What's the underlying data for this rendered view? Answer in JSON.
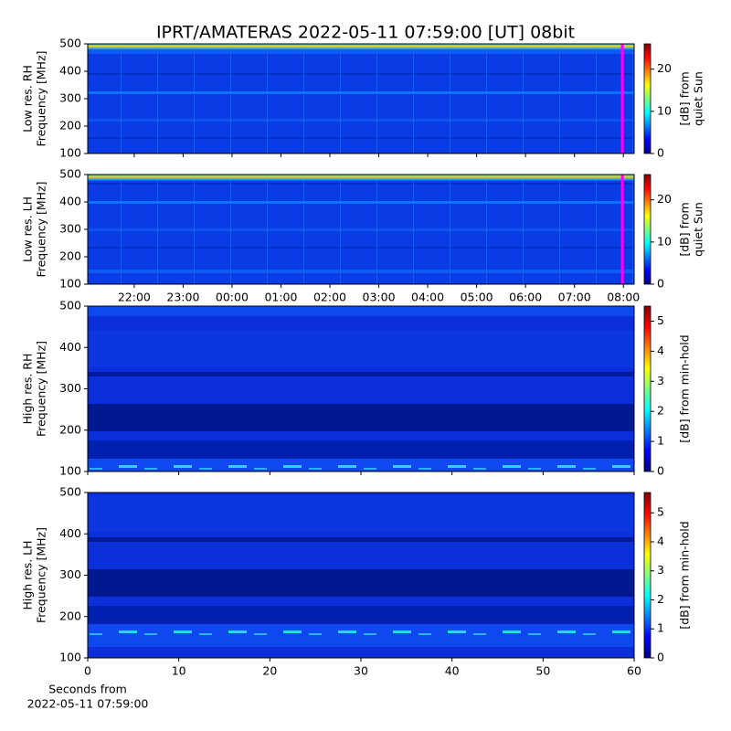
{
  "chart_data": [
    {
      "type": "spectrogram",
      "title": "IPRT/AMATERAS 2022-05-11 07:59:00 [UT]   08bit",
      "ylabel": [
        "Low res. RH",
        "Frequency [MHz]"
      ],
      "ylim": [
        100,
        500
      ],
      "yticks": [
        100,
        200,
        300,
        400,
        500
      ],
      "xlim": [
        21.05,
        32.22
      ],
      "marker_x": 31.98,
      "marker_color": "#ff00ff",
      "colorbar_label": [
        "[dB] from",
        "quiet Sun"
      ],
      "clim": [
        0,
        26
      ],
      "cticks": [
        0,
        10,
        20
      ],
      "colormap": "jet"
    },
    {
      "type": "spectrogram",
      "ylabel": [
        "Low res. LH",
        "Frequency [MHz]"
      ],
      "ylim": [
        100,
        500
      ],
      "yticks": [
        100,
        200,
        300,
        400,
        500
      ],
      "xlim": [
        21.05,
        32.22
      ],
      "marker_x": 31.98,
      "marker_color": "#ff00ff",
      "xticks": [
        {
          "value": 22,
          "label": "22:00"
        },
        {
          "value": 23,
          "label": "23:00"
        },
        {
          "value": 24,
          "label": "00:00"
        },
        {
          "value": 25,
          "label": "01:00"
        },
        {
          "value": 26,
          "label": "02:00"
        },
        {
          "value": 27,
          "label": "03:00"
        },
        {
          "value": 28,
          "label": "04:00"
        },
        {
          "value": 29,
          "label": "05:00"
        },
        {
          "value": 30,
          "label": "06:00"
        },
        {
          "value": 31,
          "label": "07:00"
        },
        {
          "value": 32,
          "label": "08:00"
        }
      ],
      "colorbar_label": [
        "[dB] from",
        "quiet Sun"
      ],
      "clim": [
        0,
        26
      ],
      "cticks": [
        0,
        10,
        20
      ],
      "colormap": "jet"
    },
    {
      "type": "spectrogram",
      "ylabel": [
        "High res. RH",
        "Frequency [MHz]"
      ],
      "ylim": [
        100,
        500
      ],
      "yticks": [
        100,
        200,
        300,
        400,
        500
      ],
      "xlim": [
        0,
        60
      ],
      "colorbar_label": [
        "[dB] from min-hold"
      ],
      "clim": [
        0,
        5.5
      ],
      "cticks": [
        0,
        1,
        2,
        3,
        4,
        5
      ],
      "colormap": "jet"
    },
    {
      "type": "spectrogram",
      "ylabel": [
        "High res. LH",
        "Frequency [MHz]"
      ],
      "ylim": [
        100,
        500
      ],
      "yticks": [
        100,
        200,
        300,
        400,
        500
      ],
      "xlim": [
        0,
        60
      ],
      "xticks": [
        0,
        10,
        20,
        30,
        40,
        50,
        60
      ],
      "xlabel": [
        "Seconds from",
        "2022-05-11 07:59:00"
      ],
      "colorbar_label": [
        "[dB] from min-hold"
      ],
      "clim": [
        0,
        5.7
      ],
      "cticks": [
        0,
        1,
        2,
        3,
        4,
        5
      ],
      "colormap": "jet"
    }
  ]
}
